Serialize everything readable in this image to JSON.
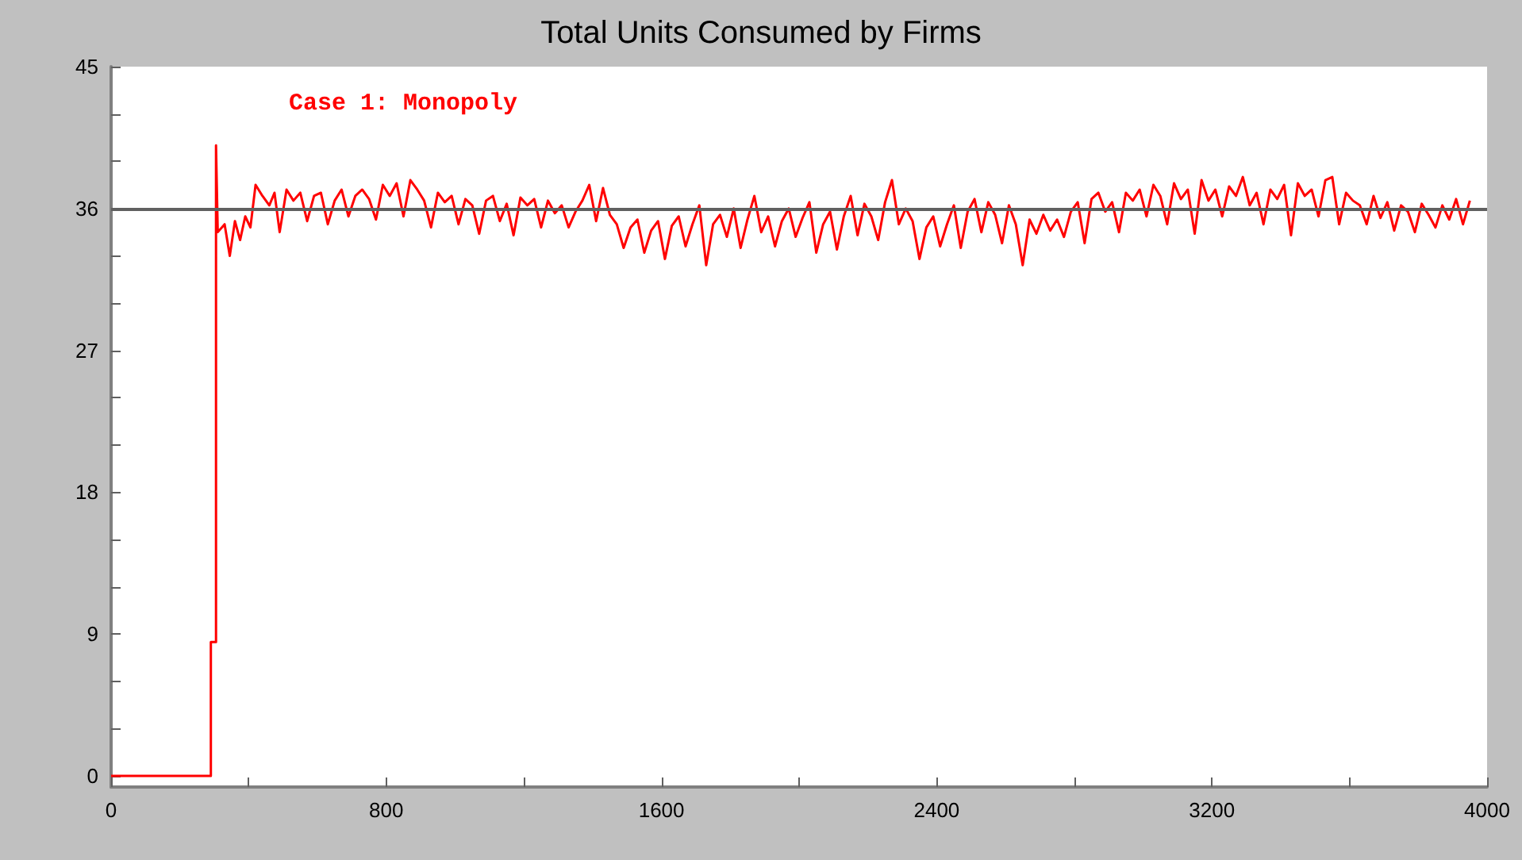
{
  "chart_data": {
    "type": "line",
    "title": "Total Units Consumed by Firms",
    "annotations": [
      "Case 1: Monopoly"
    ],
    "xlim": [
      0,
      4000
    ],
    "xticks": [
      0,
      {
        "value": 400,
        "label": null
      },
      800,
      {
        "value": 1200,
        "label": null
      },
      1600,
      {
        "value": 2000,
        "label": null
      },
      2400,
      {
        "value": 2800,
        "label": null
      },
      3200,
      {
        "value": 3600,
        "label": null
      },
      4000
    ],
    "ylim": [
      -0.7,
      45
    ],
    "yticks": [
      0,
      {
        "value": 3,
        "label": null
      },
      {
        "value": 6,
        "label": null
      },
      9,
      {
        "value": 12,
        "label": null
      },
      {
        "value": 15,
        "label": null
      },
      18,
      {
        "value": 21,
        "label": null
      },
      {
        "value": 24,
        "label": null
      },
      27,
      {
        "value": 30,
        "label": null
      },
      {
        "value": 33,
        "label": null
      },
      36,
      {
        "value": 39,
        "label": null
      },
      {
        "value": 42,
        "label": null
      },
      45
    ],
    "grid": false,
    "marker": "none",
    "line_style": "solid",
    "ref_lines": [
      {
        "axis": "y",
        "value": 36,
        "color": "#606060"
      }
    ],
    "series": [
      {
        "color": "#ff0000",
        "x": [
          0,
          290,
          290,
          305,
          305,
          310,
          330,
          345,
          360,
          375,
          390,
          405,
          420,
          440,
          460,
          475,
          490,
          510,
          530,
          550,
          570,
          590,
          610,
          630,
          650,
          670,
          690,
          710,
          730,
          750,
          770,
          790,
          810,
          830,
          850,
          870,
          890,
          910,
          930,
          950,
          970,
          990,
          1010,
          1030,
          1050,
          1070,
          1090,
          1110,
          1130,
          1150,
          1170,
          1190,
          1210,
          1230,
          1250,
          1270,
          1290,
          1310,
          1330,
          1350,
          1370,
          1390,
          1410,
          1430,
          1450,
          1470,
          1490,
          1510,
          1530,
          1550,
          1570,
          1590,
          1610,
          1630,
          1650,
          1670,
          1690,
          1710,
          1730,
          1750,
          1770,
          1790,
          1810,
          1830,
          1850,
          1870,
          1890,
          1910,
          1930,
          1950,
          1970,
          1990,
          2010,
          2030,
          2050,
          2070,
          2090,
          2110,
          2130,
          2150,
          2170,
          2190,
          2210,
          2230,
          2250,
          2270,
          2290,
          2310,
          2330,
          2350,
          2370,
          2390,
          2410,
          2430,
          2450,
          2470,
          2490,
          2510,
          2530,
          2550,
          2570,
          2590,
          2610,
          2630,
          2650,
          2670,
          2690,
          2710,
          2730,
          2750,
          2770,
          2790,
          2810,
          2830,
          2850,
          2870,
          2890,
          2910,
          2930,
          2950,
          2970,
          2990,
          3010,
          3030,
          3050,
          3070,
          3090,
          3110,
          3130,
          3150,
          3170,
          3190,
          3210,
          3230,
          3250,
          3270,
          3290,
          3310,
          3330,
          3350,
          3370,
          3390,
          3410,
          3430,
          3450,
          3470,
          3490,
          3510,
          3530,
          3550,
          3570,
          3590,
          3610,
          3630,
          3650,
          3670,
          3690,
          3710,
          3730,
          3750,
          3770,
          3790,
          3810,
          3830,
          3850,
          3870,
          3890,
          3910,
          3930,
          3950
        ],
        "values": [
          0,
          0,
          8.5,
          8.5,
          40,
          34.5,
          35,
          33,
          35.2,
          34,
          35.5,
          34.8,
          37.5,
          36.8,
          36.2,
          37,
          34.5,
          37.2,
          36.5,
          37,
          35.2,
          36.8,
          37,
          35,
          36.5,
          37.2,
          35.5,
          36.8,
          37.2,
          36.6,
          35.3,
          37.5,
          36.8,
          37.6,
          35.5,
          37.8,
          37.2,
          36.5,
          34.8,
          37,
          36.4,
          36.8,
          35,
          36.6,
          36.2,
          34.4,
          36.5,
          36.8,
          35.2,
          36.3,
          34.3,
          36.7,
          36.2,
          36.6,
          34.8,
          36.5,
          35.7,
          36.2,
          34.8,
          35.8,
          36.5,
          37.5,
          35.2,
          37.3,
          35.6,
          35,
          33.5,
          34.8,
          35.3,
          33.2,
          34.6,
          35.2,
          32.8,
          34.9,
          35.5,
          33.6,
          35,
          36.2,
          32.4,
          35,
          35.6,
          34.2,
          36,
          33.5,
          35.3,
          36.8,
          34.5,
          35.5,
          33.6,
          35.2,
          36,
          34.2,
          35.4,
          36.4,
          33.2,
          35,
          35.8,
          33.4,
          35.5,
          36.8,
          34.3,
          36.3,
          35.5,
          34,
          36.4,
          37.8,
          35,
          36,
          35.2,
          32.8,
          34.8,
          35.5,
          33.6,
          35,
          36.2,
          33.5,
          35.8,
          36.6,
          34.5,
          36.4,
          35.6,
          33.8,
          36.2,
          35,
          32.4,
          35.3,
          34.4,
          35.6,
          34.6,
          35.3,
          34.2,
          35.8,
          36.4,
          33.8,
          36.6,
          37,
          35.8,
          36.4,
          34.5,
          37,
          36.5,
          37.2,
          35.5,
          37.5,
          36.8,
          35,
          37.6,
          36.6,
          37.2,
          34.4,
          37.8,
          36.5,
          37.2,
          35.5,
          37.4,
          36.8,
          38,
          36.2,
          37,
          35,
          37.2,
          36.6,
          37.5,
          34.3,
          37.6,
          36.8,
          37.2,
          35.5,
          37.8,
          38,
          35,
          37,
          36.5,
          36.2,
          35,
          36.8,
          35.4,
          36.4,
          34.6,
          36.2,
          35.8,
          34.5,
          36.3,
          35.6,
          34.8,
          36.2,
          35.3,
          36.6,
          35,
          36.5
        ]
      }
    ]
  }
}
